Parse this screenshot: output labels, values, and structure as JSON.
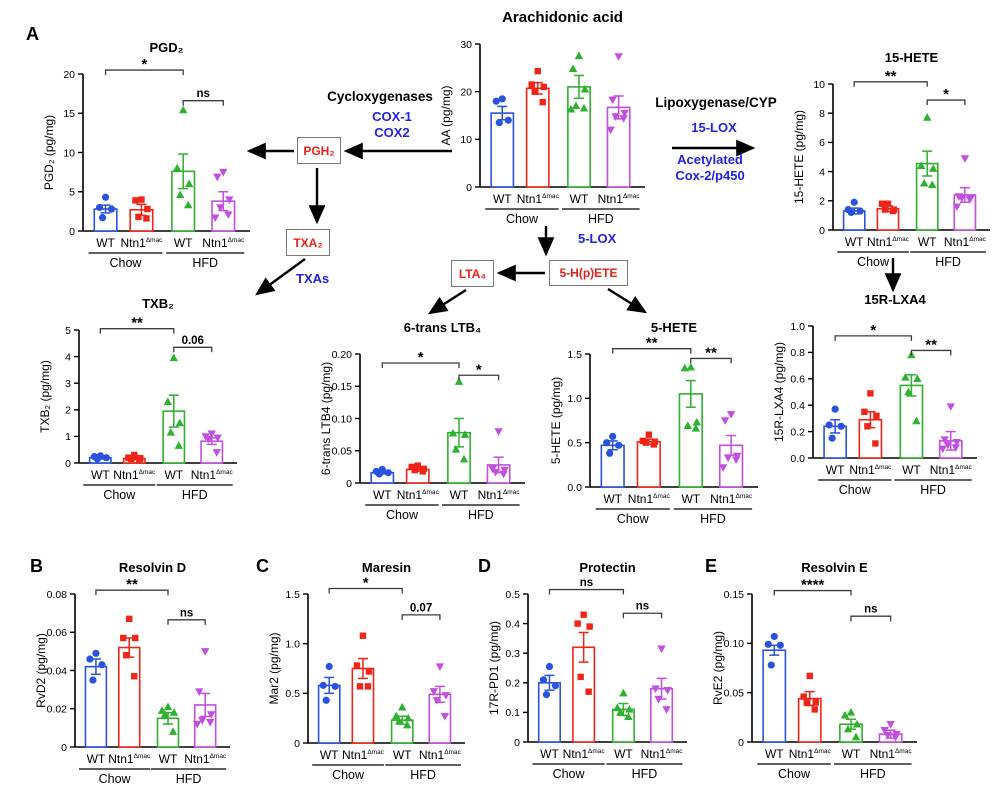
{
  "colors": {
    "groups": [
      "#2a52df",
      "#ee2517",
      "#2eb12e",
      "#c24fe0"
    ],
    "pathway_blue": "#2222e6",
    "box_red": "#ee1f16",
    "bracket": "#3c3c3c"
  },
  "panel_labels": {
    "a": "A",
    "b": "B",
    "c": "C",
    "d": "D",
    "e": "E"
  },
  "group_labels": [
    {
      "label": "WT"
    },
    {
      "label": "Ntn1",
      "sup": "Δmac"
    },
    {
      "label": "WT"
    },
    {
      "label": "Ntn1",
      "sup": "Δmac"
    }
  ],
  "diet_labels": [
    "Chow",
    "HFD"
  ],
  "pathway": {
    "cycloxygenases": "Cycloxygenases",
    "cox1": "COX-1",
    "cox2": "COX2",
    "lipoxygenase": "Lipoxygenase/CYP",
    "lox15": "15-LOX",
    "acetylated": "Acetylated",
    "cox2_p450": "Cox-2/p450",
    "lox5": "5-LOX",
    "txas": "TXAs",
    "pgh2": "PGH₂",
    "txa2": "TXA₂",
    "lta4": "LTA₄",
    "hpete5": "5-H(p)ETE"
  },
  "chart_data": [
    {
      "id": "pgd2",
      "type": "bar",
      "title": "PGD₂",
      "ylabel": "PGD₂ (pg/mg)",
      "categories": [
        "WT Chow",
        "Ntn1Δmac Chow",
        "WT HFD",
        "Ntn1Δmac HFD"
      ],
      "ylim": [
        0,
        20
      ],
      "yticks": [
        "0",
        "5",
        "10",
        "15",
        "20"
      ],
      "means": [
        2.8,
        2.7,
        7.6,
        3.8
      ],
      "sem": [
        0.5,
        0.7,
        2.2,
        1.2
      ],
      "points": [
        [
          4.3,
          3.0,
          2.8,
          1.7
        ],
        [
          4.0,
          3.9,
          2.8,
          1.8,
          1.6
        ],
        [
          15.4,
          8.0,
          6.0,
          4.6,
          3.3
        ],
        [
          7.5,
          6.9,
          4.0,
          3.0,
          2.1,
          1.7
        ]
      ],
      "sig": [
        {
          "i": 0,
          "j": 2,
          "label": "*",
          "y": 20.5
        },
        {
          "i": 2,
          "j": 3,
          "label": "ns",
          "y": 16.6
        }
      ]
    },
    {
      "id": "aa",
      "type": "bar",
      "title": "Arachidonic acid",
      "title_size": 15,
      "ylabel": "AA (pg/mg)",
      "categories": [
        "WT Chow",
        "Ntn1Δmac Chow",
        "WT HFD",
        "Ntn1Δmac HFD"
      ],
      "ylim": [
        0,
        30
      ],
      "yticks": [
        "0",
        "10",
        "20",
        "30"
      ],
      "means": [
        15.5,
        20.7,
        21.0,
        16.7
      ],
      "sem": [
        1.4,
        1.2,
        2.4,
        2.4
      ],
      "points": [
        [
          18.5,
          18.0,
          14.0,
          13.5
        ],
        [
          24.3,
          21.5,
          21.0,
          20.0,
          17.8
        ],
        [
          27.5,
          24.8,
          20.5,
          17.0,
          16.5,
          16.3
        ],
        [
          27.4,
          18.3,
          15.5,
          14.8,
          14.4,
          12.0
        ]
      ],
      "sig": []
    },
    {
      "id": "hete15",
      "type": "bar",
      "title": "15-HETE",
      "ylabel": "15-HETE (pg/mg)",
      "categories": [
        "WT Chow",
        "Ntn1Δmac Chow",
        "WT HFD",
        "Ntn1Δmac HFD"
      ],
      "ylim": [
        0,
        10
      ],
      "yticks": [
        "0",
        "2",
        "4",
        "6",
        "8",
        "10"
      ],
      "means": [
        1.3,
        1.45,
        4.55,
        2.4
      ],
      "sem": [
        0.2,
        0.2,
        0.85,
        0.5
      ],
      "points": [
        [
          1.9,
          1.4,
          1.3,
          1.2
        ],
        [
          1.8,
          1.8,
          1.4,
          1.4,
          1.3
        ],
        [
          7.7,
          4.4,
          4.2,
          3.2,
          3.1
        ],
        [
          4.9,
          2.3,
          2.2,
          2.2,
          2.1,
          1.6
        ]
      ],
      "sig": [
        {
          "i": 0,
          "j": 2,
          "label": "**",
          "y": 10.15
        },
        {
          "i": 2,
          "j": 3,
          "label": "*",
          "y": 8.9
        }
      ]
    },
    {
      "id": "txb2",
      "type": "bar",
      "title": "TXB₂",
      "ylabel": "TXB₂ (pg/mg)",
      "categories": [
        "WT Chow",
        "Ntn1Δmac Chow",
        "WT HFD",
        "Ntn1Δmac HFD"
      ],
      "ylim": [
        0,
        5
      ],
      "yticks": [
        "0",
        "1",
        "2",
        "3",
        "4",
        "5"
      ],
      "means": [
        0.2,
        0.17,
        1.95,
        0.82
      ],
      "sem": [
        0.05,
        0.04,
        0.6,
        0.12
      ],
      "points": [
        [
          0.27,
          0.24,
          0.2,
          0.15
        ],
        [
          0.3,
          0.2,
          0.18,
          0.15,
          0.12
        ],
        [
          3.95,
          2.3,
          1.5,
          1.15,
          0.65
        ],
        [
          1.1,
          1.0,
          0.95,
          0.9,
          0.4
        ]
      ],
      "sig": [
        {
          "i": 0,
          "j": 2,
          "label": "**",
          "y": 5.05
        },
        {
          "i": 2,
          "j": 3,
          "label": "0.06",
          "y": 4.35
        }
      ]
    },
    {
      "id": "ltb4",
      "type": "bar",
      "title": "6-trans LTB₄",
      "ylabel": "6-trans LTB4 (pg/mg)",
      "categories": [
        "WT Chow",
        "Ntn1Δmac Chow",
        "WT HFD",
        "Ntn1Δmac HFD"
      ],
      "ylim": [
        0,
        0.2
      ],
      "yticks": [
        "0",
        "0.05",
        "0.10",
        "0.15",
        "0.20"
      ],
      "means": [
        0.016,
        0.021,
        0.078,
        0.028
      ],
      "sem": [
        0.002,
        0.003,
        0.022,
        0.012
      ],
      "points": [
        [
          0.021,
          0.018,
          0.016,
          0.014
        ],
        [
          0.027,
          0.025,
          0.022,
          0.02,
          0.018
        ],
        [
          0.157,
          0.077,
          0.075,
          0.052,
          0.037
        ],
        [
          0.08,
          0.022,
          0.02,
          0.017,
          0.014
        ]
      ],
      "sig": [
        {
          "i": 0,
          "j": 2,
          "label": "*",
          "y": 0.186
        },
        {
          "i": 2,
          "j": 3,
          "label": "*",
          "y": 0.167
        }
      ]
    },
    {
      "id": "hete5",
      "type": "bar",
      "title": "5-HETE",
      "ylabel": "5-HETE (pg/mg)",
      "categories": [
        "WT Chow",
        "Ntn1Δmac Chow",
        "WT HFD",
        "Ntn1Δmac HFD"
      ],
      "ylim": [
        0,
        1.5
      ],
      "yticks": [
        "0.0",
        "0.5",
        "1.0",
        "1.5"
      ],
      "means": [
        0.47,
        0.51,
        1.05,
        0.47
      ],
      "sem": [
        0.05,
        0.03,
        0.15,
        0.11
      ],
      "points": [
        [
          0.57,
          0.5,
          0.47,
          0.38
        ],
        [
          0.59,
          0.52,
          0.51,
          0.5,
          0.48
        ],
        [
          1.35,
          1.34,
          0.73,
          0.69,
          0.66
        ],
        [
          0.82,
          0.75,
          0.35,
          0.33,
          0.31,
          0.22
        ]
      ],
      "sig": [
        {
          "i": 0,
          "j": 2,
          "label": "**",
          "y": 1.56
        },
        {
          "i": 2,
          "j": 3,
          "label": "**",
          "y": 1.45
        }
      ]
    },
    {
      "id": "lxa4",
      "type": "bar",
      "title": "15R-LXA4",
      "ylabel": "15R-LXA4 (pg/mg)",
      "categories": [
        "WT Chow",
        "Ntn1Δmac Chow",
        "WT HFD",
        "Ntn1Δmac HFD"
      ],
      "ylim": [
        0,
        1.0
      ],
      "yticks": [
        "0.0",
        "0.2",
        "0.4",
        "0.6",
        "0.8",
        "1.0"
      ],
      "means": [
        0.24,
        0.29,
        0.55,
        0.13
      ],
      "sem": [
        0.05,
        0.06,
        0.08,
        0.07
      ],
      "points": [
        [
          0.37,
          0.25,
          0.24,
          0.15
        ],
        [
          0.49,
          0.35,
          0.32,
          0.24,
          0.11
        ],
        [
          0.78,
          0.61,
          0.6,
          0.5,
          0.28
        ],
        [
          0.39,
          0.14,
          0.12,
          0.1,
          0.08,
          0.07
        ]
      ],
      "sig": [
        {
          "i": 0,
          "j": 2,
          "label": "*",
          "y": 0.925
        },
        {
          "i": 2,
          "j": 3,
          "label": "**",
          "y": 0.815
        }
      ]
    },
    {
      "id": "rvd2",
      "type": "bar",
      "title": "Resolvin D",
      "ylabel": "RvD2 (pg/mg)",
      "categories": [
        "WT Chow",
        "Ntn1Δmac Chow",
        "WT HFD",
        "Ntn1Δmac HFD"
      ],
      "ylim": [
        0,
        0.08
      ],
      "yticks": [
        "0",
        "0.02",
        "0.04",
        "0.06",
        "0.08"
      ],
      "means": [
        0.042,
        0.052,
        0.015,
        0.022
      ],
      "sem": [
        0.004,
        0.005,
        0.003,
        0.006
      ],
      "points": [
        [
          0.049,
          0.046,
          0.043,
          0.035
        ],
        [
          0.067,
          0.057,
          0.057,
          0.048,
          0.037
        ],
        [
          0.021,
          0.019,
          0.018,
          0.017,
          0.008
        ],
        [
          0.05,
          0.029,
          0.017,
          0.014,
          0.013,
          0.012
        ]
      ],
      "sig": [
        {
          "i": 0,
          "j": 2,
          "label": "**",
          "y": 0.082
        },
        {
          "i": 2,
          "j": 3,
          "label": "ns",
          "y": 0.0665
        }
      ]
    },
    {
      "id": "mar2",
      "type": "bar",
      "title": "Maresin",
      "ylabel": "Mar2 (pg/mg)",
      "categories": [
        "WT Chow",
        "Ntn1Δmac Chow",
        "WT HFD",
        "Ntn1Δmac HFD"
      ],
      "ylim": [
        0,
        1.5
      ],
      "yticks": [
        "0",
        "0.5",
        "1.0",
        "1.5"
      ],
      "means": [
        0.58,
        0.75,
        0.23,
        0.49
      ],
      "sem": [
        0.08,
        0.1,
        0.04,
        0.08
      ],
      "points": [
        [
          0.77,
          0.58,
          0.57,
          0.43
        ],
        [
          1.08,
          0.78,
          0.72,
          0.57,
          0.57
        ],
        [
          0.36,
          0.27,
          0.25,
          0.22,
          0.18
        ],
        [
          0.77,
          0.52,
          0.48,
          0.43,
          0.27
        ]
      ],
      "sig": [
        {
          "i": 0,
          "j": 2,
          "label": "*",
          "y": 1.555
        },
        {
          "i": 2,
          "j": 3,
          "label": "0.07",
          "y": 1.29
        }
      ]
    },
    {
      "id": "pd1",
      "type": "bar",
      "title": "Protectin",
      "ylabel": "17R-PD1 (pg/mg)",
      "categories": [
        "WT Chow",
        "Ntn1Δmac Chow",
        "WT HFD",
        "Ntn1Δmac HFD"
      ],
      "ylim": [
        0,
        0.5
      ],
      "yticks": [
        "0",
        "0.1",
        "0.2",
        "0.3",
        "0.4",
        "0.5"
      ],
      "means": [
        0.2,
        0.32,
        0.11,
        0.18
      ],
      "sem": [
        0.025,
        0.05,
        0.02,
        0.035
      ],
      "points": [
        [
          0.255,
          0.21,
          0.19,
          0.16
        ],
        [
          0.43,
          0.4,
          0.39,
          0.22,
          0.17
        ],
        [
          0.165,
          0.115,
          0.11,
          0.1,
          0.085
        ],
        [
          0.315,
          0.18,
          0.175,
          0.145,
          0.11
        ]
      ],
      "sig": [
        {
          "i": 0,
          "j": 2,
          "label": "ns",
          "y": 0.515
        },
        {
          "i": 2,
          "j": 3,
          "label": "ns",
          "y": 0.435
        }
      ]
    },
    {
      "id": "rve2",
      "type": "bar",
      "title": "Resolvin E",
      "ylabel": "RvE2 (pg/mg)",
      "categories": [
        "WT Chow",
        "Ntn1Δmac Chow",
        "WT HFD",
        "Ntn1Δmac HFD"
      ],
      "ylim": [
        0,
        0.15
      ],
      "yticks": [
        "0",
        "0.05",
        "0.10",
        "0.15"
      ],
      "means": [
        0.093,
        0.044,
        0.018,
        0.008
      ],
      "sem": [
        0.005,
        0.007,
        0.005,
        0.004
      ],
      "points": [
        [
          0.107,
          0.099,
          0.098,
          0.078
        ],
        [
          0.067,
          0.046,
          0.04,
          0.04,
          0.033
        ],
        [
          0.03,
          0.027,
          0.018,
          0.013,
          0.005
        ],
        [
          0.018,
          0.012,
          0.008,
          0.007,
          0.005
        ]
      ],
      "sig": [
        {
          "i": 0,
          "j": 2,
          "label": "****",
          "y": 0.1535
        },
        {
          "i": 2,
          "j": 3,
          "label": "ns",
          "y": 0.1275
        }
      ]
    }
  ]
}
